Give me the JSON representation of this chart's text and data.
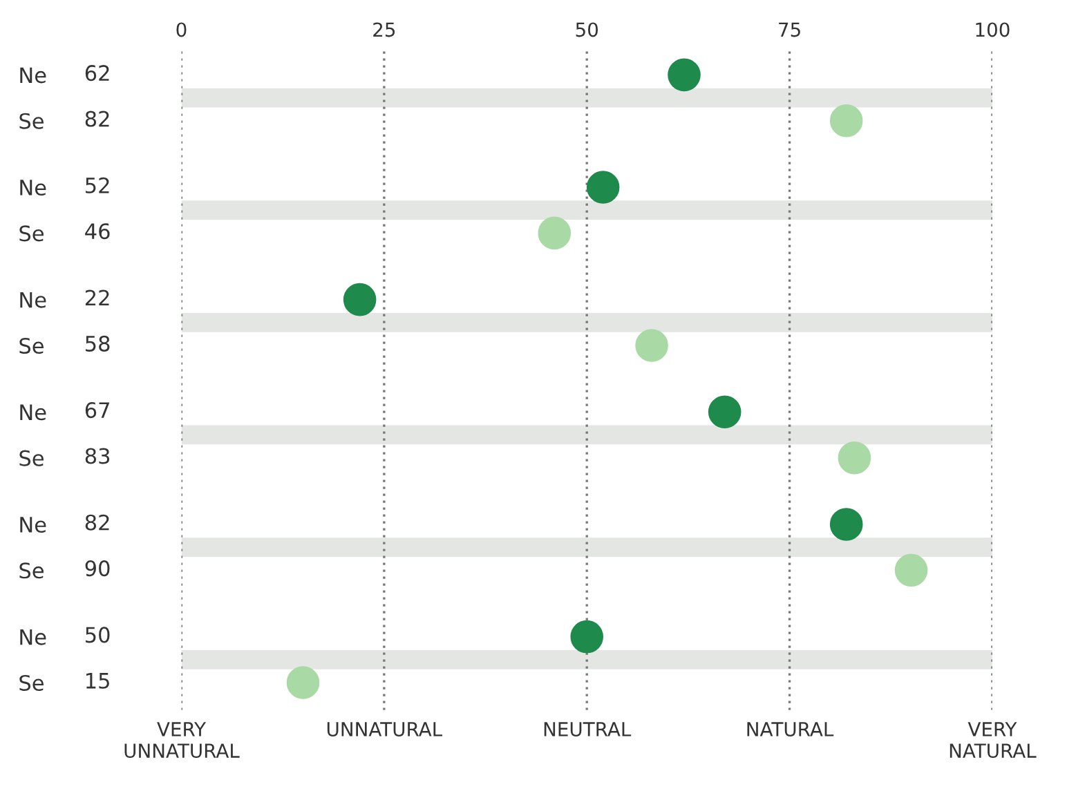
{
  "chart_data": {
    "type": "scatter",
    "orientation": "horizontal",
    "categories": [
      "Ne",
      "Se",
      "Ne",
      "Se",
      "Ne",
      "Se",
      "Ne",
      "Se",
      "Ne",
      "Se",
      "Ne",
      "Se"
    ],
    "values": [
      62,
      82,
      52,
      46,
      22,
      58,
      67,
      83,
      82,
      90,
      50,
      15
    ],
    "colors": [
      "#1e8a4c",
      "#a9d9a4",
      "#1e8a4c",
      "#a9d9a4",
      "#1e8a4c",
      "#a9d9a4",
      "#1e8a4c",
      "#a9d9a4",
      "#1e8a4c",
      "#a9d9a4",
      "#1e8a4c",
      "#a9d9a4"
    ],
    "data_labels": true,
    "xlim": [
      0,
      100
    ],
    "xticks": [
      0,
      25,
      50,
      75,
      100
    ],
    "annotations": [
      "VERY\nUNNATURAL",
      "UNNATURAL",
      "NEUTRAL",
      "NATURAL",
      "VERY\nNATURAL"
    ],
    "grid": true,
    "marker": "circle"
  }
}
